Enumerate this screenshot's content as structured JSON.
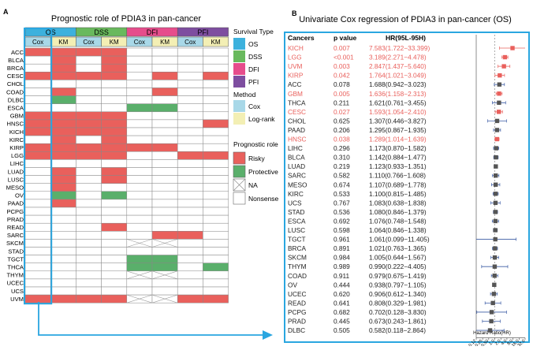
{
  "panel_a": {
    "label": "A",
    "title": "Prognostic role of PDIA3 in pan-cancer",
    "groups": [
      {
        "name": "OS",
        "color": "#3cb1dd"
      },
      {
        "name": "DSS",
        "color": "#69b95d"
      },
      {
        "name": "DFI",
        "color": "#e64d8c"
      },
      {
        "name": "PFI",
        "color": "#7e4ea0"
      }
    ],
    "methods": [
      "Cox",
      "KM"
    ],
    "cancers": [
      "ACC",
      "BLCA",
      "BRCA",
      "CESC",
      "CHOL",
      "COAD",
      "DLBC",
      "ESCA",
      "GBM",
      "HNSC",
      "KICH",
      "KIRC",
      "KIRP",
      "LGG",
      "LIHC",
      "LUAD",
      "LUSC",
      "MESO",
      "OV",
      "PAAD",
      "PCPG",
      "PRAD",
      "READ",
      "SARC",
      "SKCM",
      "STAD",
      "TGCT",
      "THCA",
      "THYM",
      "UCEC",
      "UCS",
      "UVM"
    ],
    "grid": [
      "RRRRNNNN",
      "NRNRNNNN",
      "NRNRNNNN",
      "RRRRNRNR",
      "NNNNNNNN",
      "NRNNNRNN",
      "NPNNNNNN",
      "NNNNPPNN",
      "RRRRNNNN",
      "RRRRNNNR",
      "RRRRNNNN",
      "NRNRNNNN",
      "RRRRRRNN",
      "RRRRNNRR",
      "NNNNNNNN",
      "NRNRNNNN",
      "NRNRNNNN",
      "NRNNNNNN",
      "NPNPNNNN",
      "NRNNNNNN",
      "NNNNNNNN",
      "NNNNNNNN",
      "NNNRNNNN",
      "NNNNNRRN",
      "NNNNXXNN",
      "NNNNNNNN",
      "NNNNPPNN",
      "NNNNPPNP",
      "NNNNXXNN",
      "NNNNNNNN",
      "NNNNNNNN",
      "RRRRXXRR"
    ],
    "colors": {
      "R": "#e9605c",
      "P": "#5aaf6b",
      "N": "#ffffff",
      "X": "#ffffff"
    },
    "legend": {
      "survival_title": "Survival Type",
      "survival": [
        {
          "label": "OS",
          "color": "#3cb1dd"
        },
        {
          "label": "DSS",
          "color": "#69b95d"
        },
        {
          "label": "DFI",
          "color": "#e64d8c"
        },
        {
          "label": "PFI",
          "color": "#7e4ea0"
        }
      ],
      "method_title": "Method",
      "method": [
        {
          "label": "Cox",
          "color": "#a8d8e8"
        },
        {
          "label": "Log-rank",
          "color": "#f3efb4"
        }
      ],
      "role_title": "Prognostic role",
      "role": [
        {
          "label": "Risky",
          "key": "R"
        },
        {
          "label": "Protective",
          "key": "P"
        },
        {
          "label": "NA",
          "key": "X"
        },
        {
          "label": "Nonsense",
          "key": "N"
        }
      ]
    }
  },
  "panel_b": {
    "label": "B",
    "title": "Univariate Cox regression of PDIA3 in pan-cancer (OS)",
    "col_headers": [
      "Cancers",
      "p value",
      "HR(95L-95H)"
    ],
    "xlabel": "Hazard Ratio(HR)",
    "ticks": [
      "0.12",
      "0.25",
      "0.50",
      "1.0",
      "2.0",
      "4.0",
      "8.0",
      "16.0",
      "32.0"
    ],
    "highlight_color": "#e9605c",
    "normal_color": "#555555"
  },
  "chart_data": {
    "type": "scatter",
    "title": "Univariate Cox regression of PDIA3 in pan-cancer (OS)",
    "xlabel": "Hazard Ratio(HR)",
    "x_scale": "log2",
    "xlim": [
      0.12,
      32.0
    ],
    "rows": [
      {
        "cancer": "KICH",
        "p": "0.007",
        "hr": "7.583(1.722−33.399)",
        "est": 7.583,
        "lo": 1.722,
        "hi": 33.399,
        "sig": true
      },
      {
        "cancer": "LGG",
        "p": "<0.001",
        "hr": "3.189(2.271−4.478)",
        "est": 3.189,
        "lo": 2.271,
        "hi": 4.478,
        "sig": true
      },
      {
        "cancer": "UVM",
        "p": "0.003",
        "hr": "2.847(1.437−5.640)",
        "est": 2.847,
        "lo": 1.437,
        "hi": 5.64,
        "sig": true
      },
      {
        "cancer": "KIRP",
        "p": "0.042",
        "hr": "1.764(1.021−3.049)",
        "est": 1.764,
        "lo": 1.021,
        "hi": 3.049,
        "sig": true
      },
      {
        "cancer": "ACC",
        "p": "0.078",
        "hr": "1.688(0.942−3.023)",
        "est": 1.688,
        "lo": 0.942,
        "hi": 3.023,
        "sig": false
      },
      {
        "cancer": "GBM",
        "p": "0.005",
        "hr": "1.636(1.158−2.313)",
        "est": 1.636,
        "lo": 1.158,
        "hi": 2.313,
        "sig": true
      },
      {
        "cancer": "THCA",
        "p": "0.211",
        "hr": "1.621(0.761−3.455)",
        "est": 1.621,
        "lo": 0.761,
        "hi": 3.455,
        "sig": false
      },
      {
        "cancer": "CESC",
        "p": "0.027",
        "hr": "1.593(1.054−2.410)",
        "est": 1.593,
        "lo": 1.054,
        "hi": 2.41,
        "sig": true
      },
      {
        "cancer": "CHOL",
        "p": "0.625",
        "hr": "1.307(0.446−3.827)",
        "est": 1.307,
        "lo": 0.446,
        "hi": 3.827,
        "sig": false
      },
      {
        "cancer": "PAAD",
        "p": "0.206",
        "hr": "1.295(0.867−1.935)",
        "est": 1.295,
        "lo": 0.867,
        "hi": 1.935,
        "sig": false
      },
      {
        "cancer": "HNSC",
        "p": "0.038",
        "hr": "1.289(1.014−1.639)",
        "est": 1.289,
        "lo": 1.014,
        "hi": 1.639,
        "sig": true
      },
      {
        "cancer": "LIHC",
        "p": "0.296",
        "hr": "1.173(0.870−1.582)",
        "est": 1.173,
        "lo": 0.87,
        "hi": 1.582,
        "sig": false
      },
      {
        "cancer": "BLCA",
        "p": "0.310",
        "hr": "1.142(0.884−1.477)",
        "est": 1.142,
        "lo": 0.884,
        "hi": 1.477,
        "sig": false
      },
      {
        "cancer": "LUAD",
        "p": "0.219",
        "hr": "1.123(0.933−1.351)",
        "est": 1.123,
        "lo": 0.933,
        "hi": 1.351,
        "sig": false
      },
      {
        "cancer": "SARC",
        "p": "0.582",
        "hr": "1.110(0.766−1.608)",
        "est": 1.11,
        "lo": 0.766,
        "hi": 1.608,
        "sig": false
      },
      {
        "cancer": "MESO",
        "p": "0.674",
        "hr": "1.107(0.689−1.778)",
        "est": 1.107,
        "lo": 0.689,
        "hi": 1.778,
        "sig": false
      },
      {
        "cancer": "KIRC",
        "p": "0.533",
        "hr": "1.100(0.815−1.485)",
        "est": 1.1,
        "lo": 0.815,
        "hi": 1.485,
        "sig": false
      },
      {
        "cancer": "UCS",
        "p": "0.767",
        "hr": "1.083(0.638−1.838)",
        "est": 1.083,
        "lo": 0.638,
        "hi": 1.838,
        "sig": false
      },
      {
        "cancer": "STAD",
        "p": "0.536",
        "hr": "1.080(0.846−1.379)",
        "est": 1.08,
        "lo": 0.846,
        "hi": 1.379,
        "sig": false
      },
      {
        "cancer": "ESCA",
        "p": "0.692",
        "hr": "1.076(0.748−1.548)",
        "est": 1.076,
        "lo": 0.748,
        "hi": 1.548,
        "sig": false
      },
      {
        "cancer": "LUSC",
        "p": "0.598",
        "hr": "1.064(0.846−1.338)",
        "est": 1.064,
        "lo": 0.846,
        "hi": 1.338,
        "sig": false
      },
      {
        "cancer": "TGCT",
        "p": "0.961",
        "hr": "1.061(0.099−11.405)",
        "est": 1.061,
        "lo": 0.099,
        "hi": 11.405,
        "sig": false
      },
      {
        "cancer": "BRCA",
        "p": "0.891",
        "hr": "1.021(0.763−1.365)",
        "est": 1.021,
        "lo": 0.763,
        "hi": 1.365,
        "sig": false
      },
      {
        "cancer": "SKCM",
        "p": "0.984",
        "hr": "1.005(0.644−1.567)",
        "est": 1.005,
        "lo": 0.644,
        "hi": 1.567,
        "sig": false
      },
      {
        "cancer": "THYM",
        "p": "0.989",
        "hr": "0.990(0.222−4.405)",
        "est": 0.99,
        "lo": 0.222,
        "hi": 4.405,
        "sig": false
      },
      {
        "cancer": "COAD",
        "p": "0.911",
        "hr": "0.979(0.675−1.419)",
        "est": 0.979,
        "lo": 0.675,
        "hi": 1.419,
        "sig": false
      },
      {
        "cancer": "OV",
        "p": "0.444",
        "hr": "0.938(0.797−1.105)",
        "est": 0.938,
        "lo": 0.797,
        "hi": 1.105,
        "sig": false
      },
      {
        "cancer": "UCEC",
        "p": "0.620",
        "hr": "0.906(0.612−1.340)",
        "est": 0.906,
        "lo": 0.612,
        "hi": 1.34,
        "sig": false
      },
      {
        "cancer": "READ",
        "p": "0.641",
        "hr": "0.808(0.329−1.981)",
        "est": 0.808,
        "lo": 0.329,
        "hi": 1.981,
        "sig": false
      },
      {
        "cancer": "PCPG",
        "p": "0.682",
        "hr": "0.702(0.128−3.830)",
        "est": 0.702,
        "lo": 0.128,
        "hi": 3.83,
        "sig": false
      },
      {
        "cancer": "PRAD",
        "p": "0.445",
        "hr": "0.673(0.243−1.861)",
        "est": 0.673,
        "lo": 0.243,
        "hi": 1.861,
        "sig": false
      },
      {
        "cancer": "DLBC",
        "p": "0.505",
        "hr": "0.582(0.118−2.864)",
        "est": 0.582,
        "lo": 0.118,
        "hi": 2.864,
        "sig": false
      }
    ]
  }
}
